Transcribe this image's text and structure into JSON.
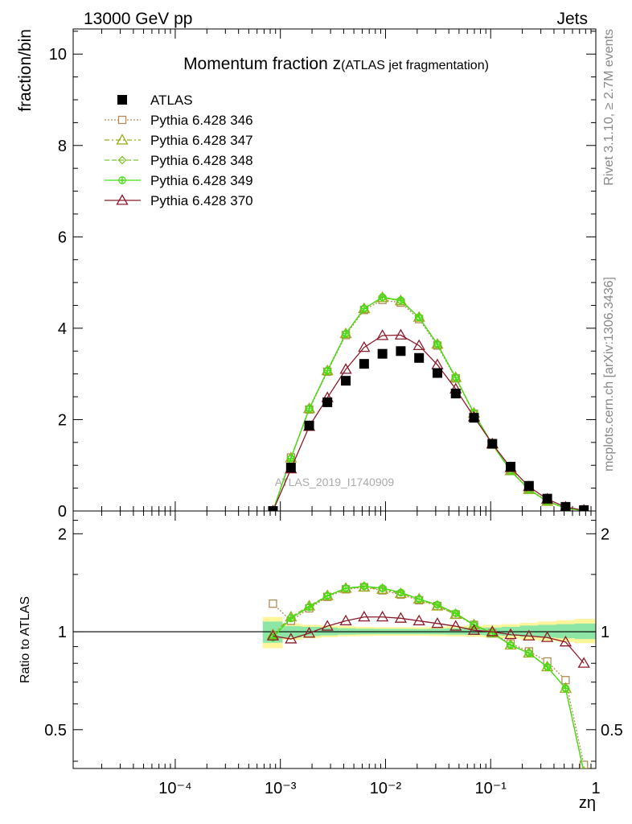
{
  "header": {
    "left": "13000 GeV pp",
    "right": "Jets"
  },
  "side_labels": {
    "rivet": "Rivet 3.1.10, ≥ 2.7M events",
    "mcplots": "mcplots.cern.ch [arXiv:1306.3436]"
  },
  "watermark": "ATLAS_2019_I1740909",
  "chart_data": [
    {
      "type": "line",
      "title_main": "Momentum fraction ",
      "title_z": "z",
      "title_sub": "(ATLAS jet fragmentation)",
      "ylabel": "fraction/bin",
      "xlabel": "zη",
      "xscale": "log",
      "xlim": [
        1.07e-05,
        1
      ],
      "ylim": [
        0,
        10.55
      ],
      "yticks": [
        0,
        2,
        4,
        6,
        8,
        10
      ],
      "ytick_labels": [
        "0",
        "2",
        "4",
        "6",
        "8",
        "10"
      ],
      "xtick_labels": [
        "10⁻⁴",
        "10⁻³",
        "10⁻²",
        "10⁻¹",
        "1"
      ],
      "x": [
        0.00085,
        0.00126,
        0.00188,
        0.0028,
        0.00419,
        0.00626,
        0.00935,
        0.01396,
        0.02085,
        0.03114,
        0.0465,
        0.0694,
        0.1037,
        0.1548,
        0.2312,
        0.3454,
        0.5158,
        0.7703
      ],
      "legend_position": "top-left",
      "series": [
        {
          "name": "ATLAS",
          "color": "#000000",
          "marker": "square-filled",
          "line": "none",
          "values": [
            0.0,
            0.95,
            1.87,
            2.38,
            2.85,
            3.22,
            3.44,
            3.5,
            3.35,
            3.02,
            2.57,
            2.04,
            1.47,
            0.97,
            0.55,
            0.27,
            0.09,
            0.02
          ]
        },
        {
          "name": "Pythia 6.428 346",
          "color": "#b08d57",
          "marker": "square-open",
          "line": "dotted",
          "values": [
            0.0,
            1.17,
            2.22,
            3.05,
            3.85,
            4.4,
            4.62,
            4.56,
            4.2,
            3.62,
            2.9,
            2.13,
            1.46,
            0.89,
            0.48,
            0.22,
            0.065,
            0.008
          ]
        },
        {
          "name": "Pythia 6.428 347",
          "color": "#9aab1a",
          "marker": "triangle-open",
          "line": "dashdot",
          "values": [
            0.0,
            1.16,
            2.24,
            3.07,
            3.88,
            4.43,
            4.67,
            4.6,
            4.24,
            3.65,
            2.92,
            2.14,
            1.46,
            0.88,
            0.47,
            0.21,
            0.06,
            0.008
          ]
        },
        {
          "name": "Pythia 6.428 348",
          "color": "#7ec832",
          "marker": "diamond-open",
          "line": "dashed",
          "values": [
            0.0,
            1.16,
            2.24,
            3.07,
            3.88,
            4.43,
            4.67,
            4.6,
            4.24,
            3.65,
            2.92,
            2.14,
            1.46,
            0.88,
            0.47,
            0.21,
            0.06,
            0.008
          ]
        },
        {
          "name": "Pythia 6.428 349",
          "color": "#44dd11",
          "marker": "circle-cross",
          "line": "solid",
          "values": [
            0.0,
            1.15,
            2.24,
            3.07,
            3.88,
            4.43,
            4.68,
            4.61,
            4.24,
            3.65,
            2.92,
            2.14,
            1.46,
            0.88,
            0.47,
            0.21,
            0.06,
            0.008
          ]
        },
        {
          "name": "Pythia 6.428 370",
          "color": "#8b1a2a",
          "marker": "triangle-open",
          "line": "solid",
          "values": [
            0.0,
            0.92,
            1.85,
            2.48,
            3.1,
            3.58,
            3.84,
            3.85,
            3.62,
            3.2,
            2.67,
            2.06,
            1.47,
            0.95,
            0.53,
            0.26,
            0.085,
            0.016
          ]
        }
      ]
    },
    {
      "type": "line",
      "ylabel": "Ratio to ATLAS",
      "yscale": "log",
      "ylim": [
        0.38,
        2.35
      ],
      "yticks": [
        0.5,
        1,
        2
      ],
      "ytick_labels": [
        "0.5",
        "1",
        "2"
      ],
      "reference_line": 1,
      "band_x": [
        0.00068,
        0.00105,
        0.0016,
        0.0024,
        0.0035,
        0.0052,
        0.0078,
        0.0117,
        0.017,
        0.026,
        0.038,
        0.057,
        0.085,
        0.127,
        0.19,
        0.28,
        0.42,
        0.63,
        1.0
      ],
      "band_inner": [
        [
          0.925,
          1.075
        ],
        [
          0.96,
          1.04
        ],
        [
          0.97,
          1.035
        ],
        [
          0.975,
          1.03
        ],
        [
          0.98,
          1.025
        ],
        [
          0.982,
          1.022
        ],
        [
          0.983,
          1.02
        ],
        [
          0.983,
          1.02
        ],
        [
          0.983,
          1.02
        ],
        [
          0.982,
          1.022
        ],
        [
          0.98,
          1.025
        ],
        [
          0.978,
          1.028
        ],
        [
          0.975,
          1.03
        ],
        [
          0.972,
          1.035
        ],
        [
          0.965,
          1.045
        ],
        [
          0.96,
          1.05
        ],
        [
          0.955,
          1.055
        ],
        [
          0.95,
          1.06
        ]
      ],
      "band_outer": [
        [
          0.89,
          1.11
        ],
        [
          0.945,
          1.06
        ],
        [
          0.955,
          1.05
        ],
        [
          0.962,
          1.045
        ],
        [
          0.968,
          1.04
        ],
        [
          0.97,
          1.035
        ],
        [
          0.972,
          1.032
        ],
        [
          0.972,
          1.032
        ],
        [
          0.972,
          1.032
        ],
        [
          0.97,
          1.035
        ],
        [
          0.968,
          1.04
        ],
        [
          0.965,
          1.045
        ],
        [
          0.96,
          1.05
        ],
        [
          0.955,
          1.055
        ],
        [
          0.945,
          1.065
        ],
        [
          0.938,
          1.075
        ],
        [
          0.93,
          1.085
        ],
        [
          0.922,
          1.095
        ]
      ],
      "series": [
        {
          "name": "Pythia 6.428 346",
          "values": [
            1.22,
            1.08,
            1.18,
            1.28,
            1.35,
            1.37,
            1.34,
            1.3,
            1.25,
            1.2,
            1.13,
            1.05,
            0.99,
            0.92,
            0.87,
            0.81,
            0.71,
            0.39
          ]
        },
        {
          "name": "Pythia 6.428 347",
          "values": [
            0.98,
            1.11,
            1.2,
            1.29,
            1.36,
            1.37,
            1.35,
            1.31,
            1.26,
            1.2,
            1.13,
            1.05,
            0.99,
            0.91,
            0.86,
            0.78,
            0.67,
            0.37
          ]
        },
        {
          "name": "Pythia 6.428 348",
          "values": [
            0.96,
            1.11,
            1.2,
            1.29,
            1.36,
            1.38,
            1.36,
            1.32,
            1.26,
            1.21,
            1.14,
            1.05,
            0.99,
            0.91,
            0.86,
            0.78,
            0.67,
            0.37
          ]
        },
        {
          "name": "Pythia 6.428 349",
          "values": [
            0.96,
            1.1,
            1.19,
            1.29,
            1.36,
            1.38,
            1.36,
            1.32,
            1.26,
            1.21,
            1.14,
            1.05,
            0.99,
            0.91,
            0.86,
            0.78,
            0.67,
            0.37
          ]
        },
        {
          "name": "Pythia 6.428 370",
          "values": [
            0.97,
            0.95,
            0.99,
            1.04,
            1.08,
            1.11,
            1.11,
            1.1,
            1.08,
            1.06,
            1.04,
            1.01,
            1.0,
            0.98,
            0.97,
            0.96,
            0.93,
            0.8
          ]
        }
      ]
    }
  ]
}
